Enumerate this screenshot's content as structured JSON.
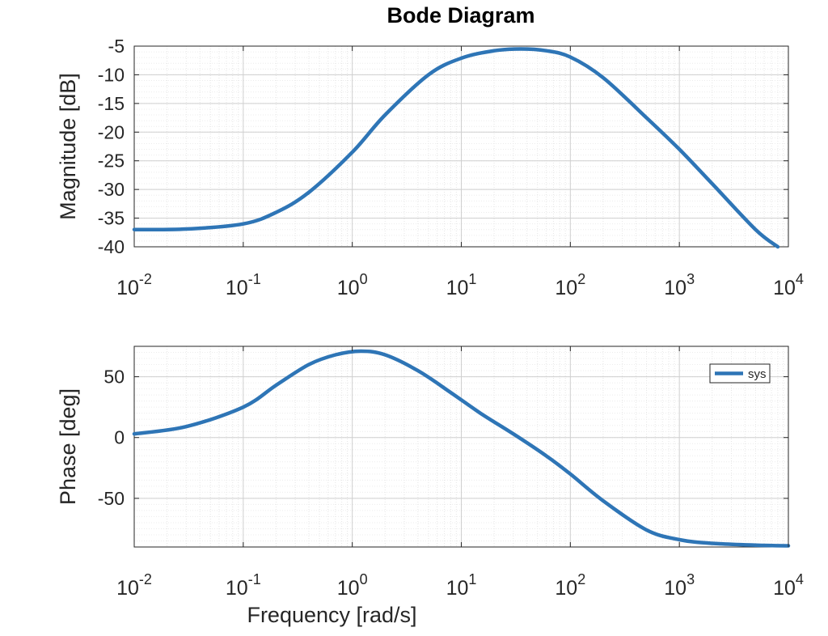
{
  "chart_data": [
    {
      "type": "line",
      "title": "Bode Diagram",
      "xlabel": "",
      "ylabel": "Magnitude [dB]",
      "xscale": "log",
      "xlim": [
        0.01,
        10000
      ],
      "ylim": [
        -40,
        -5
      ],
      "xticks": [
        {
          "base": "10",
          "exp": "-2"
        },
        {
          "base": "10",
          "exp": "-1"
        },
        {
          "base": "10",
          "exp": "0"
        },
        {
          "base": "10",
          "exp": "1"
        },
        {
          "base": "10",
          "exp": "2"
        },
        {
          "base": "10",
          "exp": "3"
        },
        {
          "base": "10",
          "exp": "4"
        }
      ],
      "yticks": [
        "-5",
        "-10",
        "-15",
        "-20",
        "-25",
        "-30",
        "-35",
        "-40"
      ],
      "grid": true,
      "series": [
        {
          "color": "#2e75b6",
          "x": [
            0.01,
            0.03,
            0.1,
            0.2,
            0.4,
            1,
            2,
            5,
            10,
            20,
            35,
            60,
            100,
            200,
            500,
            1000,
            2000,
            5000,
            8000
          ],
          "y": [
            -37,
            -36.9,
            -36,
            -34,
            -30.5,
            -23.5,
            -17,
            -10,
            -7.1,
            -5.8,
            -5.5,
            -5.8,
            -6.9,
            -10.5,
            -17.5,
            -23,
            -29,
            -37,
            -40
          ]
        }
      ]
    },
    {
      "type": "line",
      "title": "",
      "xlabel": "Frequency [rad/s]",
      "ylabel": "Phase [deg]",
      "xscale": "log",
      "xlim": [
        0.01,
        10000
      ],
      "ylim": [
        -90,
        75
      ],
      "xticks": [
        {
          "base": "10",
          "exp": "-2"
        },
        {
          "base": "10",
          "exp": "-1"
        },
        {
          "base": "10",
          "exp": "0"
        },
        {
          "base": "10",
          "exp": "1"
        },
        {
          "base": "10",
          "exp": "2"
        },
        {
          "base": "10",
          "exp": "3"
        },
        {
          "base": "10",
          "exp": "4"
        }
      ],
      "yticks": [
        "50",
        "0",
        "-50"
      ],
      "grid": true,
      "legend": {
        "entries": [
          "sys"
        ],
        "position": "top-right"
      },
      "series": [
        {
          "name": "sys",
          "color": "#2e75b6",
          "x": [
            0.01,
            0.03,
            0.1,
            0.2,
            0.4,
            0.7,
            1.2,
            2,
            4,
            8,
            15,
            30,
            60,
            100,
            200,
            500,
            1000,
            2000,
            5000,
            10000
          ],
          "y": [
            3,
            9,
            25,
            43,
            60,
            68,
            71,
            68,
            55,
            37,
            20,
            3,
            -15,
            -30,
            -52,
            -76,
            -84,
            -87,
            -88.5,
            -89
          ]
        }
      ]
    }
  ]
}
